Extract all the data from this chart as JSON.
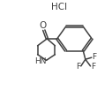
{
  "bg_color": "#ffffff",
  "line_color": "#404040",
  "text_color": "#404040",
  "figsize": [
    1.27,
    1.02
  ],
  "dpi": 100,
  "hcl_label": "HCl",
  "o_label": "O",
  "nh_label": "HN",
  "f_label": "F"
}
